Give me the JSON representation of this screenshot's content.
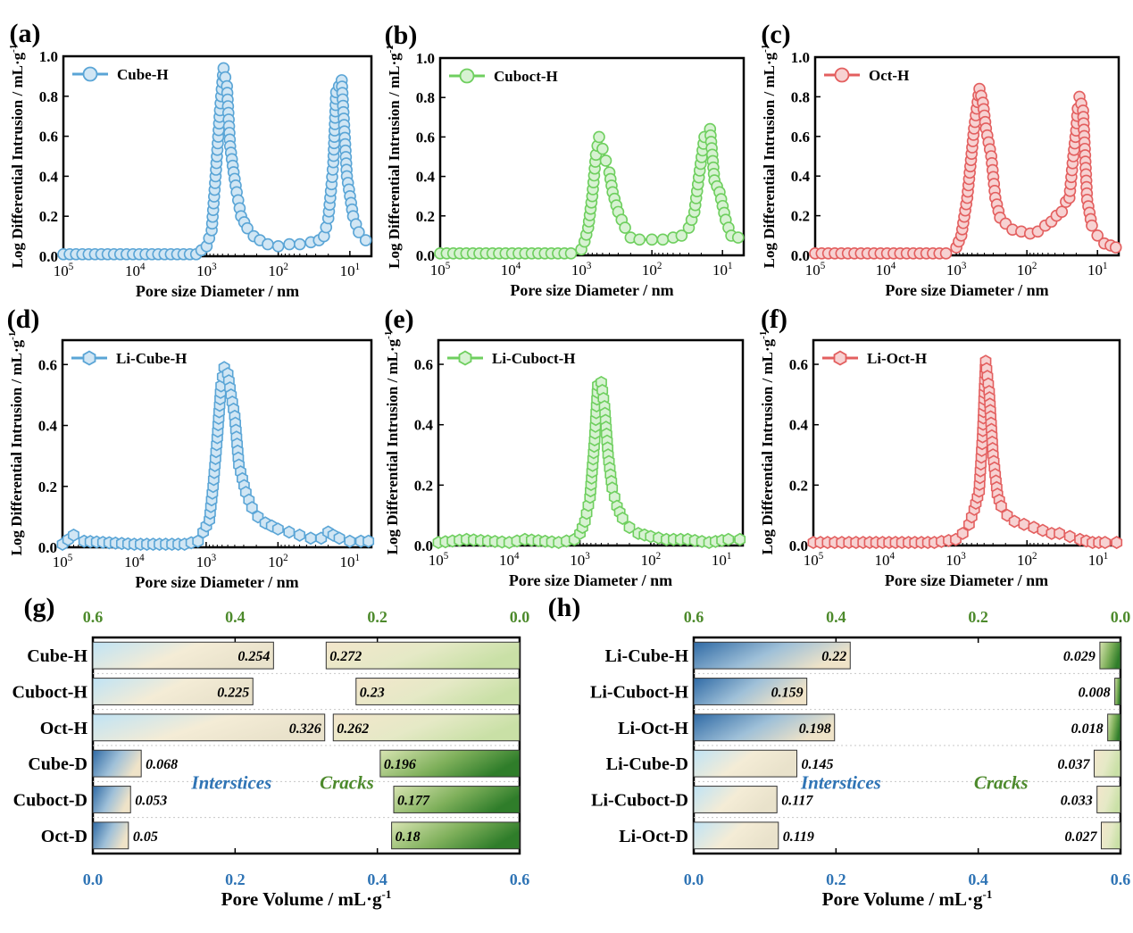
{
  "chart_data": [
    {
      "panel": "(a)",
      "type": "line",
      "xlabel": "Pore size Diameter / nm",
      "ylabel": "Log Differential Intrusion / mL·g-1",
      "xscale": "log-reversed",
      "xticks": [
        "10^5",
        "10^4",
        "10^3",
        "10^2",
        "10^1"
      ],
      "yticks": [
        "0.0",
        "0.2",
        "0.4",
        "0.6",
        "0.8",
        "1.0"
      ],
      "xlim": [
        100000,
        5
      ],
      "ylim": [
        0,
        1.0
      ],
      "legend": "top-left",
      "marker": "circle",
      "series": [
        {
          "name": "Cube-H",
          "color": "#5aa5d6",
          "points": [
            [
              100000,
              0.01
            ],
            [
              1400,
              0.01
            ],
            [
              1000,
              0.05
            ],
            [
              850,
              0.13
            ],
            [
              750,
              0.4
            ],
            [
              650,
              0.73
            ],
            [
              580,
              0.94
            ],
            [
              520,
              0.85
            ],
            [
              470,
              0.55
            ],
            [
              420,
              0.42
            ],
            [
              380,
              0.32
            ],
            [
              330,
              0.2
            ],
            [
              270,
              0.14
            ],
            [
              220,
              0.1
            ],
            [
              180,
              0.08
            ],
            [
              140,
              0.06
            ],
            [
              100,
              0.05
            ],
            [
              70,
              0.06
            ],
            [
              50,
              0.06
            ],
            [
              35,
              0.07
            ],
            [
              27,
              0.08
            ],
            [
              23,
              0.1
            ],
            [
              20,
              0.19
            ],
            [
              18,
              0.36
            ],
            [
              17,
              0.47
            ],
            [
              15.5,
              0.82
            ],
            [
              13,
              0.88
            ],
            [
              11,
              0.4
            ],
            [
              9,
              0.2
            ],
            [
              7.5,
              0.12
            ],
            [
              6,
              0.08
            ]
          ]
        }
      ]
    },
    {
      "panel": "(b)",
      "type": "line",
      "xlabel": "Pore size Diameter / nm",
      "ylabel": "Log Differential Intrusion / mL·g-1",
      "xscale": "log-reversed",
      "xticks": [
        "10^5",
        "10^4",
        "10^3",
        "10^2",
        "10^1"
      ],
      "yticks": [
        "0.0",
        "0.2",
        "0.4",
        "0.6",
        "0.8",
        "1.0"
      ],
      "xlim": [
        100000,
        5
      ],
      "ylim": [
        0,
        1.0
      ],
      "legend": "top-left",
      "marker": "circle",
      "series": [
        {
          "name": "Cuboct-H",
          "color": "#6fcf5f",
          "points": [
            [
              100000,
              0.01
            ],
            [
              1400,
              0.01
            ],
            [
              1000,
              0.03
            ],
            [
              900,
              0.07
            ],
            [
              800,
              0.14
            ],
            [
              700,
              0.3
            ],
            [
              620,
              0.51
            ],
            [
              560,
              0.6
            ],
            [
              500,
              0.54
            ],
            [
              450,
              0.48
            ],
            [
              400,
              0.42
            ],
            [
              360,
              0.32
            ],
            [
              300,
              0.22
            ],
            [
              240,
              0.14
            ],
            [
              200,
              0.09
            ],
            [
              150,
              0.08
            ],
            [
              100,
              0.08
            ],
            [
              70,
              0.08
            ],
            [
              50,
              0.09
            ],
            [
              38,
              0.1
            ],
            [
              30,
              0.14
            ],
            [
              25,
              0.22
            ],
            [
              21,
              0.43
            ],
            [
              18,
              0.6
            ],
            [
              15,
              0.64
            ],
            [
              13,
              0.38
            ],
            [
              11,
              0.32
            ],
            [
              9,
              0.18
            ],
            [
              7.5,
              0.1
            ],
            [
              6,
              0.09
            ]
          ]
        }
      ]
    },
    {
      "panel": "(c)",
      "type": "line",
      "xlabel": "Pore size Diameter / nm",
      "ylabel": "Log Differential Intrusion / mL·g-1",
      "xscale": "log-reversed",
      "xticks": [
        "10^5",
        "10^4",
        "10^3",
        "10^2",
        "10^1"
      ],
      "yticks": [
        "0.0",
        "0.2",
        "0.4",
        "0.6",
        "0.8",
        "1.0"
      ],
      "xlim": [
        100000,
        5
      ],
      "ylim": [
        0,
        1.0
      ],
      "legend": "top-left",
      "marker": "circle",
      "series": [
        {
          "name": "Oct-H",
          "color": "#e35f5f",
          "points": [
            [
              100000,
              0.01
            ],
            [
              1400,
              0.01
            ],
            [
              1000,
              0.04
            ],
            [
              850,
              0.1
            ],
            [
              700,
              0.29
            ],
            [
              560,
              0.64
            ],
            [
              470,
              0.84
            ],
            [
              420,
              0.77
            ],
            [
              380,
              0.64
            ],
            [
              320,
              0.5
            ],
            [
              280,
              0.29
            ],
            [
              240,
              0.19
            ],
            [
              200,
              0.16
            ],
            [
              160,
              0.13
            ],
            [
              120,
              0.12
            ],
            [
              90,
              0.11
            ],
            [
              70,
              0.12
            ],
            [
              55,
              0.15
            ],
            [
              45,
              0.17
            ],
            [
              38,
              0.2
            ],
            [
              32,
              0.22
            ],
            [
              28,
              0.27
            ],
            [
              25,
              0.29
            ],
            [
              22,
              0.5
            ],
            [
              20,
              0.63
            ],
            [
              19,
              0.74
            ],
            [
              18,
              0.8
            ],
            [
              16,
              0.73
            ],
            [
              14,
              0.28
            ],
            [
              12,
              0.15
            ],
            [
              10,
              0.1
            ],
            [
              8,
              0.06
            ],
            [
              6.5,
              0.05
            ],
            [
              5.5,
              0.04
            ]
          ]
        }
      ]
    },
    {
      "panel": "(d)",
      "type": "line",
      "xlabel": "Pore size Diameter / nm",
      "ylabel": "Log Differential Intrusion / mL·g-1",
      "xscale": "log-reversed",
      "xticks": [
        "10^5",
        "10^4",
        "10^3",
        "10^2",
        "10^1"
      ],
      "yticks": [
        "0.0",
        "0.2",
        "0.4",
        "0.6"
      ],
      "xlim": [
        100000,
        5
      ],
      "ylim": [
        0,
        0.68
      ],
      "legend": "top-left",
      "marker": "hexagon",
      "series": [
        {
          "name": "Li-Cube-H",
          "color": "#5aa5d6",
          "points": [
            [
              100000,
              0.01
            ],
            [
              70000,
              0.04
            ],
            [
              50000,
              0.02
            ],
            [
              10000,
              0.01
            ],
            [
              2000,
              0.01
            ],
            [
              1300,
              0.02
            ],
            [
              1100,
              0.05
            ],
            [
              900,
              0.09
            ],
            [
              800,
              0.2
            ],
            [
              700,
              0.36
            ],
            [
              620,
              0.53
            ],
            [
              560,
              0.59
            ],
            [
              500,
              0.57
            ],
            [
              450,
              0.5
            ],
            [
              400,
              0.43
            ],
            [
              350,
              0.27
            ],
            [
              280,
              0.18
            ],
            [
              230,
              0.13
            ],
            [
              190,
              0.1
            ],
            [
              150,
              0.08
            ],
            [
              100,
              0.06
            ],
            [
              70,
              0.05
            ],
            [
              50,
              0.04
            ],
            [
              35,
              0.03
            ],
            [
              25,
              0.03
            ],
            [
              20,
              0.05
            ],
            [
              17,
              0.04
            ],
            [
              14,
              0.03
            ],
            [
              10,
              0.02
            ],
            [
              7,
              0.02
            ],
            [
              5.5,
              0.02
            ]
          ]
        }
      ]
    },
    {
      "panel": "(e)",
      "type": "line",
      "xlabel": "Pore size Diameter / nm",
      "ylabel": "Log Differential Intrusion / mL·g-1",
      "xscale": "log-reversed",
      "xticks": [
        "10^5",
        "10^4",
        "10^3",
        "10^2",
        "10^1"
      ],
      "yticks": [
        "0.0",
        "0.2",
        "0.4",
        "0.6"
      ],
      "xlim": [
        100000,
        5
      ],
      "ylim": [
        0,
        0.68
      ],
      "legend": "top-left",
      "marker": "hexagon",
      "series": [
        {
          "name": "Li-Cuboct-H",
          "color": "#6fcf5f",
          "points": [
            [
              100000,
              0.01
            ],
            [
              40000,
              0.02
            ],
            [
              10000,
              0.01
            ],
            [
              6000,
              0.02
            ],
            [
              2000,
              0.01
            ],
            [
              1200,
              0.02
            ],
            [
              1000,
              0.04
            ],
            [
              850,
              0.08
            ],
            [
              720,
              0.16
            ],
            [
              620,
              0.35
            ],
            [
              560,
              0.53
            ],
            [
              500,
              0.54
            ],
            [
              450,
              0.46
            ],
            [
              400,
              0.3
            ],
            [
              350,
              0.19
            ],
            [
              300,
              0.13
            ],
            [
              250,
              0.09
            ],
            [
              200,
              0.06
            ],
            [
              150,
              0.04
            ],
            [
              100,
              0.03
            ],
            [
              60,
              0.02
            ],
            [
              30,
              0.02
            ],
            [
              15,
              0.01
            ],
            [
              8,
              0.02
            ],
            [
              5.5,
              0.02
            ]
          ]
        }
      ]
    },
    {
      "panel": "(f)",
      "type": "line",
      "xlabel": "Pore size Diameter / nm",
      "ylabel": "Log Differential Intrusion / mL·g-1",
      "xscale": "log-reversed",
      "xticks": [
        "10^5",
        "10^4",
        "10^3",
        "10^2",
        "10^1"
      ],
      "yticks": [
        "0.0",
        "0.2",
        "0.4",
        "0.6"
      ],
      "xlim": [
        100000,
        5
      ],
      "ylim": [
        0,
        0.68
      ],
      "legend": "top-left",
      "marker": "hexagon",
      "series": [
        {
          "name": "Li-Oct-H",
          "color": "#e35f5f",
          "points": [
            [
              100000,
              0.01
            ],
            [
              20000,
              0.01
            ],
            [
              2000,
              0.01
            ],
            [
              1000,
              0.02
            ],
            [
              800,
              0.04
            ],
            [
              650,
              0.07
            ],
            [
              550,
              0.12
            ],
            [
              470,
              0.18
            ],
            [
              420,
              0.36
            ],
            [
              380,
              0.61
            ],
            [
              340,
              0.51
            ],
            [
              300,
              0.3
            ],
            [
              260,
              0.17
            ],
            [
              230,
              0.13
            ],
            [
              190,
              0.1
            ],
            [
              150,
              0.08
            ],
            [
              110,
              0.07
            ],
            [
              80,
              0.06
            ],
            [
              60,
              0.05
            ],
            [
              45,
              0.04
            ],
            [
              35,
              0.04
            ],
            [
              25,
              0.03
            ],
            [
              18,
              0.02
            ],
            [
              12,
              0.01
            ],
            [
              8,
              0.01
            ],
            [
              5.5,
              0.01
            ]
          ]
        }
      ]
    },
    {
      "panel": "(g)",
      "type": "bar",
      "orientation": "horizontal-diverging",
      "xlabel": "Pore Volume / mL·g-1",
      "bottom_ticks": [
        "0.0",
        "0.2",
        "0.4",
        "0.6"
      ],
      "top_ticks": [
        "0.6",
        "0.4",
        "0.2",
        "0.0"
      ],
      "xlim": [
        0,
        0.6
      ],
      "categories": [
        "Cube-H",
        "Cuboct-H",
        "Oct-H",
        "Cube-D",
        "Cuboct-D",
        "Oct-D"
      ],
      "series": [
        {
          "name": "Interstices",
          "axis": "bottom",
          "color": "#2f74b5",
          "values": [
            0.254,
            0.225,
            0.326,
            0.068,
            0.053,
            0.05
          ],
          "labels": [
            "0.254",
            "0.225",
            "0.326",
            "0.068",
            "0.053",
            "0.05"
          ]
        },
        {
          "name": "Cracks",
          "axis": "top",
          "color": "#3d8c2c",
          "values": [
            0.272,
            0.23,
            0.262,
            0.196,
            0.177,
            0.18
          ],
          "labels": [
            "0.272",
            "0.23",
            "0.262",
            "0.196",
            "0.177",
            "0.18"
          ]
        }
      ]
    },
    {
      "panel": "(h)",
      "type": "bar",
      "orientation": "horizontal-diverging",
      "xlabel": "Pore Volume / mL·g-1",
      "bottom_ticks": [
        "0.0",
        "0.2",
        "0.4",
        "0.6"
      ],
      "top_ticks": [
        "0.6",
        "0.4",
        "0.2",
        "0.0"
      ],
      "xlim": [
        0,
        0.6
      ],
      "categories": [
        "Li-Cube-H",
        "Li-Cuboct-H",
        "Li-Oct-H",
        "Li-Cube-D",
        "Li-Cuboct-D",
        "Li-Oct-D"
      ],
      "series": [
        {
          "name": "Interstices",
          "axis": "bottom",
          "color": "#2f74b5",
          "values": [
            0.22,
            0.159,
            0.198,
            0.145,
            0.117,
            0.119
          ],
          "labels": [
            "0.22",
            "0.159",
            "0.198",
            "0.145",
            "0.117",
            "0.119"
          ]
        },
        {
          "name": "Cracks",
          "axis": "top",
          "color": "#3d8c2c",
          "values": [
            0.029,
            0.008,
            0.018,
            0.037,
            0.033,
            0.027
          ],
          "labels": [
            "0.029",
            "0.008",
            "0.018",
            "0.037",
            "0.033",
            "0.027"
          ]
        }
      ]
    }
  ],
  "colors": {
    "interstices_text": "#2f74b5",
    "cracks_text": "#4d8a2c",
    "axis": "#000000"
  }
}
